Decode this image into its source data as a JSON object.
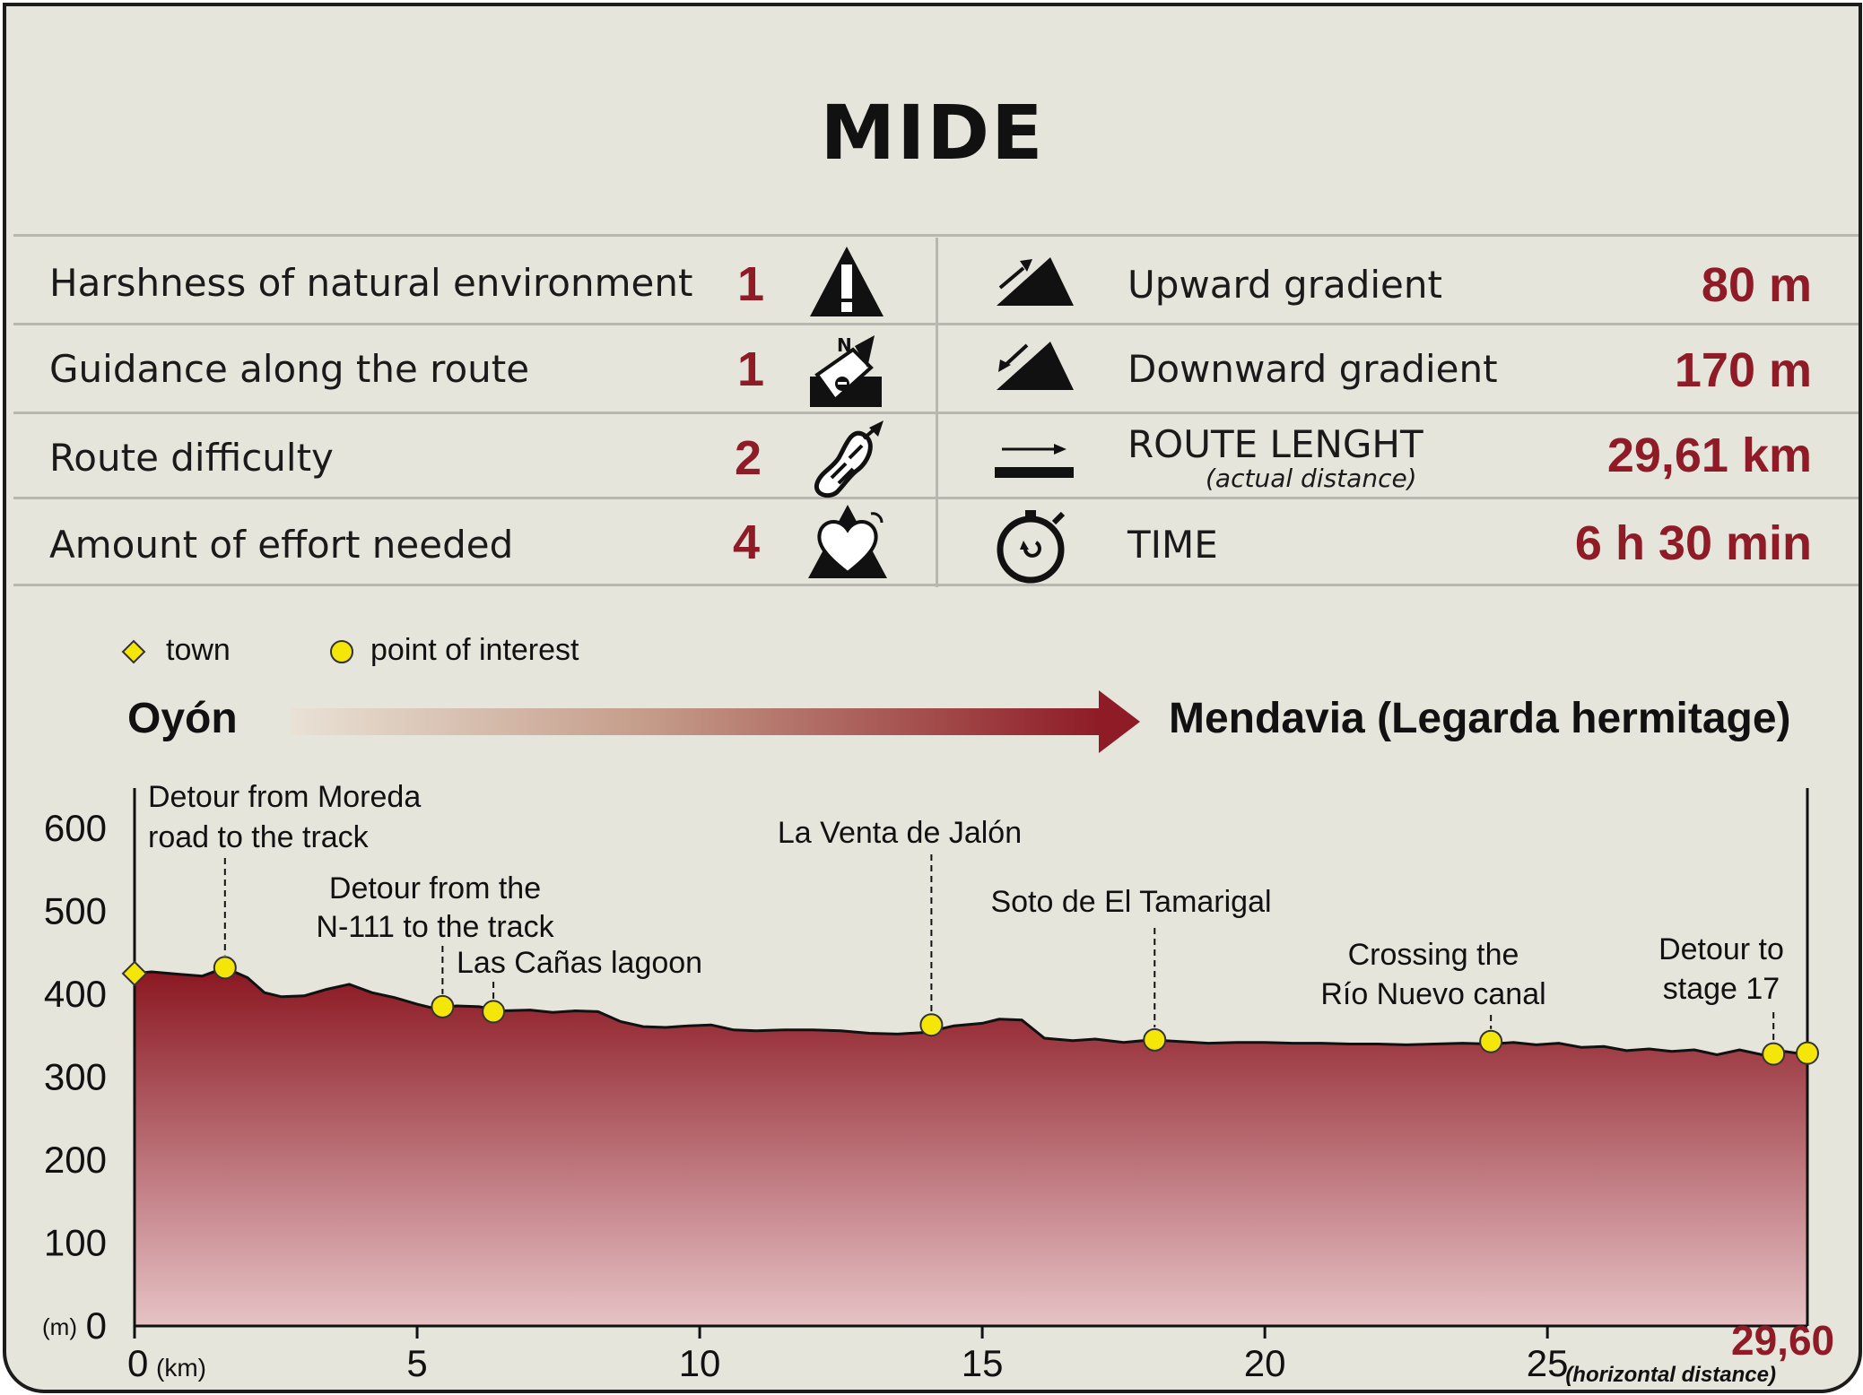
{
  "title": "MIDE",
  "mide_left": [
    {
      "label": "Harshness of natural environment",
      "value": "1",
      "icon": "warning-icon"
    },
    {
      "label": "Guidance along the route",
      "value": "1",
      "icon": "compass-signpost-icon"
    },
    {
      "label": "Route difficulty",
      "value": "2",
      "icon": "footprint-icon"
    },
    {
      "label": "Amount of effort needed",
      "value": "4",
      "icon": "heart-effort-icon"
    }
  ],
  "mide_right": [
    {
      "label": "Upward gradient",
      "value": "80 m",
      "icon": "uphill-icon"
    },
    {
      "label": "Downward gradient",
      "value": "170 m",
      "icon": "downhill-icon"
    },
    {
      "label": "ROUTE LENGHT",
      "sublabel": "(actual distance)",
      "value": "29,61 km",
      "icon": "distance-arrow-icon"
    },
    {
      "label": "TIME",
      "value": "6 h 30 min",
      "icon": "stopwatch-icon"
    }
  ],
  "legend": {
    "town": "town",
    "poi": "point of interest"
  },
  "route": {
    "start": "Oyón",
    "end": "Mendavia (Legarda hermitage)"
  },
  "colors": {
    "accent": "#8e1b26",
    "profile_top": "#8a1620",
    "profile_bottom": "#e6c3c6",
    "marker": "#f5e60a",
    "background": "#e5e5dc"
  },
  "chart_data": {
    "type": "area",
    "title": "",
    "xlabel": "(km)",
    "ylabel": "(m)",
    "xlim": [
      0,
      29.6
    ],
    "ylim": [
      0,
      600
    ],
    "x_ticks": [
      0,
      5,
      10,
      15,
      20,
      25
    ],
    "x_tick_labels": [
      "0",
      "5",
      "10",
      "15",
      "20",
      "25"
    ],
    "y_ticks": [
      0,
      100,
      200,
      300,
      400,
      500,
      600
    ],
    "y_tick_labels": [
      "0",
      "100",
      "200",
      "300",
      "400",
      "500",
      "600"
    ],
    "end_label": "29,60",
    "end_note": "(horizontal distance)",
    "profile": {
      "x": [
        0,
        0.3,
        0.8,
        1.2,
        1.6,
        2.0,
        2.3,
        2.6,
        3.0,
        3.4,
        3.8,
        4.2,
        4.6,
        5.0,
        5.3,
        5.7,
        6.1,
        6.5,
        7.0,
        7.4,
        7.8,
        8.2,
        8.6,
        9.0,
        9.4,
        9.8,
        10.2,
        10.6,
        11.0,
        11.5,
        12.0,
        12.5,
        13.0,
        13.5,
        14.0,
        14.5,
        15.0,
        15.3,
        15.7,
        16.1,
        16.6,
        17.0,
        17.5,
        18.0,
        18.5,
        19.0,
        19.5,
        20.0,
        20.5,
        21.0,
        21.5,
        22.0,
        22.5,
        23.0,
        23.5,
        24.0,
        24.4,
        24.8,
        25.2,
        25.6,
        26.0,
        26.4,
        26.8,
        27.2,
        27.6,
        28.0,
        28.4,
        28.8,
        29.2,
        29.6
      ],
      "y": [
        425,
        427,
        424,
        422,
        432,
        420,
        402,
        397,
        398,
        406,
        412,
        402,
        396,
        388,
        383,
        386,
        385,
        380,
        381,
        378,
        380,
        379,
        367,
        361,
        360,
        362,
        363,
        357,
        356,
        357,
        357,
        356,
        353,
        352,
        354,
        362,
        365,
        370,
        369,
        347,
        344,
        346,
        342,
        345,
        343,
        341,
        342,
        342,
        341,
        341,
        340,
        340,
        339,
        340,
        341,
        340,
        342,
        339,
        341,
        336,
        337,
        332,
        334,
        331,
        333,
        327,
        333,
        327,
        331,
        327
      ]
    },
    "towns": [
      {
        "x": 0,
        "y": 425
      }
    ],
    "points_of_interest": [
      {
        "x": 1.6,
        "y": 432,
        "label": [
          "Detour from Moreda",
          "road to the track"
        ]
      },
      {
        "x": 5.45,
        "y": 385,
        "label": [
          "Detour from the",
          "N-111 to the track"
        ]
      },
      {
        "x": 6.35,
        "y": 379,
        "label": [
          "Las Cañas lagoon"
        ]
      },
      {
        "x": 14.1,
        "y": 363,
        "label": [
          "La Venta de Jalón"
        ]
      },
      {
        "x": 18.05,
        "y": 345,
        "label": [
          "Soto de El Tamarigal"
        ]
      },
      {
        "x": 24.0,
        "y": 343,
        "label": [
          "Crossing the",
          "Río Nuevo canal"
        ]
      },
      {
        "x": 29.0,
        "y": 328,
        "label": [
          "Detour to",
          "stage 17"
        ]
      },
      {
        "x": 29.6,
        "y": 329,
        "label": []
      }
    ]
  }
}
